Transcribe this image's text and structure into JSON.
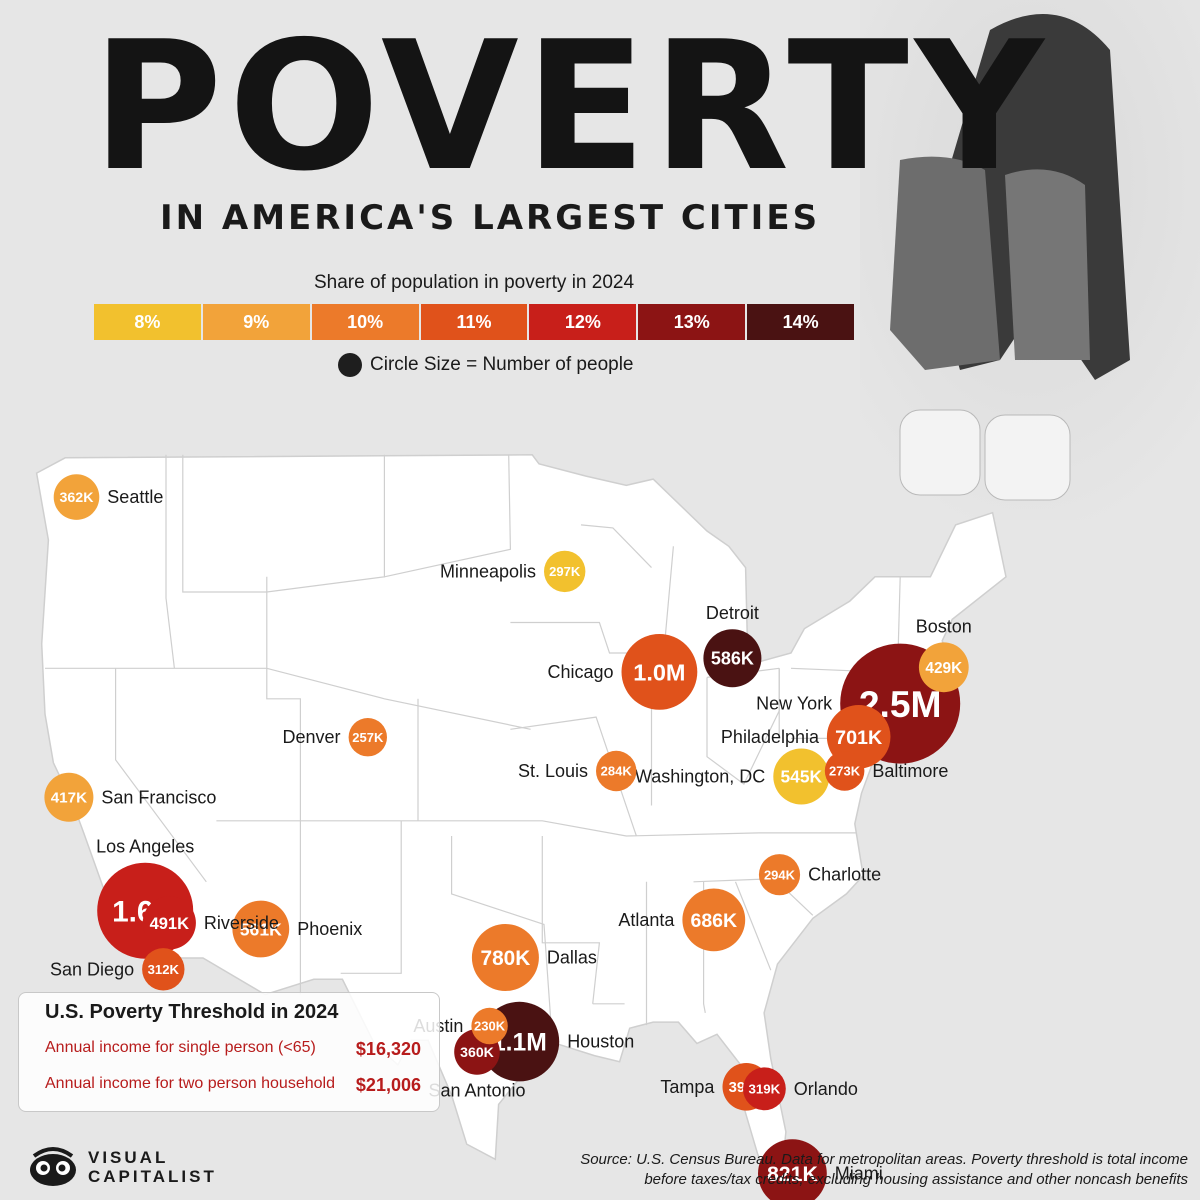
{
  "title": "POVERTY",
  "subtitle": "IN AMERICA'S LARGEST CITIES",
  "legend": {
    "title": "Share of population in poverty in 2024",
    "bins": [
      {
        "label": "8%",
        "color": "#f2c12e"
      },
      {
        "label": "9%",
        "color": "#f2a33a"
      },
      {
        "label": "10%",
        "color": "#ec7a2a"
      },
      {
        "label": "11%",
        "color": "#e0521b"
      },
      {
        "label": "12%",
        "color": "#c81f1a"
      },
      {
        "label": "13%",
        "color": "#8c1414"
      },
      {
        "label": "14%",
        "color": "#4a1212"
      }
    ],
    "size_note": "Circle Size = Number of people"
  },
  "map_data": {
    "cities": [
      {
        "name": "Seattle",
        "value_label": "362K",
        "people": 362000,
        "poverty_rate": 9,
        "lon": -122.33,
        "lat": 47.61
      },
      {
        "name": "San Francisco",
        "value_label": "417K",
        "people": 417000,
        "poverty_rate": 9,
        "lon": -122.42,
        "lat": 37.77
      },
      {
        "name": "Los Angeles",
        "value_label": "1.6M",
        "people": 1600000,
        "poverty_rate": 12,
        "lon": -118.24,
        "lat": 34.05
      },
      {
        "name": "Riverside",
        "value_label": "491K",
        "people": 491000,
        "poverty_rate": 12,
        "lon": -117.4,
        "lat": 33.98
      },
      {
        "name": "San Diego",
        "value_label": "312K",
        "people": 312000,
        "poverty_rate": 11,
        "lon": -117.16,
        "lat": 32.72
      },
      {
        "name": "Phoenix",
        "value_label": "561K",
        "people": 561000,
        "poverty_rate": 10,
        "lon": -112.07,
        "lat": 33.45
      },
      {
        "name": "Denver",
        "value_label": "257K",
        "people": 257000,
        "poverty_rate": 10,
        "lon": -104.99,
        "lat": 39.74
      },
      {
        "name": "Minneapolis",
        "value_label": "297K",
        "people": 297000,
        "poverty_rate": 8,
        "lon": -93.27,
        "lat": 44.98
      },
      {
        "name": "Chicago",
        "value_label": "1.0M",
        "people": 1000000,
        "poverty_rate": 11,
        "lon": -87.63,
        "lat": 41.88
      },
      {
        "name": "St. Louis",
        "value_label": "284K",
        "people": 284000,
        "poverty_rate": 10,
        "lon": -90.2,
        "lat": 38.63
      },
      {
        "name": "Detroit",
        "value_label": "586K",
        "people": 586000,
        "poverty_rate": 14,
        "lon": -83.05,
        "lat": 42.33
      },
      {
        "name": "Boston",
        "value_label": "429K",
        "people": 429000,
        "poverty_rate": 9,
        "lon": -71.06,
        "lat": 42.36
      },
      {
        "name": "New York",
        "value_label": "2.5M",
        "people": 2500000,
        "poverty_rate": 13,
        "lon": -74.01,
        "lat": 40.71
      },
      {
        "name": "Philadelphia",
        "value_label": "701K",
        "people": 701000,
        "poverty_rate": 11,
        "lon": -75.17,
        "lat": 39.95
      },
      {
        "name": "Baltimore",
        "value_label": "273K",
        "people": 273000,
        "poverty_rate": 11,
        "lon": -76.61,
        "lat": 39.29
      },
      {
        "name": "Washington, DC",
        "value_label": "545K",
        "people": 545000,
        "poverty_rate": 8,
        "lon": -77.04,
        "lat": 38.91
      },
      {
        "name": "Charlotte",
        "value_label": "294K",
        "people": 294000,
        "poverty_rate": 10,
        "lon": -80.84,
        "lat": 35.23
      },
      {
        "name": "Atlanta",
        "value_label": "686K",
        "people": 686000,
        "poverty_rate": 10,
        "lon": -84.39,
        "lat": 33.75
      },
      {
        "name": "Dallas",
        "value_label": "780K",
        "people": 780000,
        "poverty_rate": 10,
        "lon": -96.8,
        "lat": 32.78
      },
      {
        "name": "Austin",
        "value_label": "230K",
        "people": 230000,
        "poverty_rate": 10,
        "lon": -97.74,
        "lat": 30.27
      },
      {
        "name": "Houston",
        "value_label": "1.1M",
        "people": 1100000,
        "poverty_rate": 14,
        "lon": -95.37,
        "lat": 29.76
      },
      {
        "name": "San Antonio",
        "value_label": "360K",
        "people": 360000,
        "poverty_rate": 13,
        "lon": -98.49,
        "lat": 29.42
      },
      {
        "name": "Orlando",
        "value_label": "319K",
        "people": 319000,
        "poverty_rate": 12,
        "lon": -81.38,
        "lat": 28.54
      },
      {
        "name": "Tampa",
        "value_label": "395K",
        "people": 395000,
        "poverty_rate": 11,
        "lon": -82.46,
        "lat": 27.95
      },
      {
        "name": "Miami",
        "value_label": "821K",
        "people": 821000,
        "poverty_rate": 13,
        "lon": -80.19,
        "lat": 25.76
      }
    ]
  },
  "threshold": {
    "title": "U.S. Poverty Threshold in 2024",
    "rows": [
      {
        "label": "Annual income for single person (<65)",
        "amount": "$16,320"
      },
      {
        "label": "Annual income for two person household",
        "amount": "$21,006"
      }
    ]
  },
  "logo": {
    "line1": "VISUAL",
    "line2": "CAPITALIST"
  },
  "source": {
    "line1": "Source: U.S. Census Bureau. Data for metropolitan areas. Poverty threshold is total income",
    "line2": "before taxes/tax credits, excluding housing assistance and other noncash benefits"
  },
  "colors": {
    "background": "#e6e6e6",
    "land": "#ffffff",
    "border": "#cfcfcf",
    "text": "#1a1a1a"
  }
}
